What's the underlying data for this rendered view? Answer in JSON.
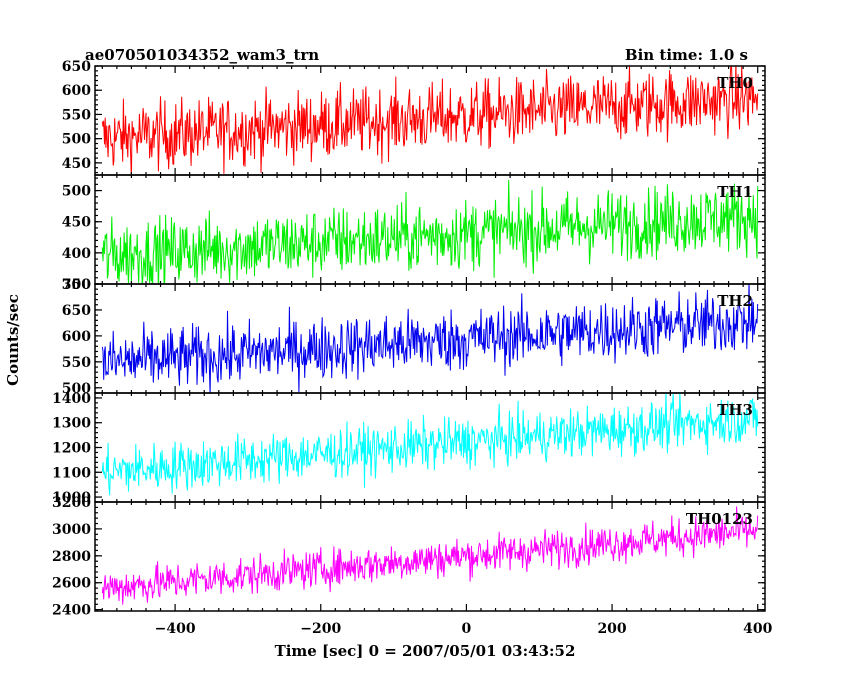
{
  "chart_data": {
    "type": "line",
    "header_left": "ae070501034352_wam3_trn",
    "header_right": "Bin time: 1.0 s",
    "xlabel": "Time [sec] 0 = 2007/05/01 03:43:52",
    "ylabel": "Counts/sec",
    "xlim": [
      -510,
      410
    ],
    "data_x_range": [
      -500,
      400
    ],
    "x_ticks": [
      -400,
      -200,
      0,
      200,
      400
    ],
    "x_tick_labels": [
      "−400",
      "−200",
      "0",
      "200",
      "400"
    ],
    "panels": [
      {
        "name": "TH0",
        "color": "#ff0000",
        "ylim": [
          425,
          650
        ],
        "y_ticks": [
          450,
          500,
          550,
          600,
          650
        ],
        "y_tick_labels": [
          "450",
          "500",
          "550",
          "600",
          "650"
        ],
        "trend_start": 500,
        "trend_end": 585,
        "noise": 35
      },
      {
        "name": "TH1",
        "color": "#00ee00",
        "ylim": [
          350,
          525
        ],
        "y_ticks": [
          350,
          400,
          450,
          500
        ],
        "y_tick_labels": [
          "350",
          "400",
          "450",
          "500"
        ],
        "trend_start": 395,
        "trend_end": 460,
        "noise": 28
      },
      {
        "name": "TH2",
        "color": "#0000ee",
        "ylim": [
          490,
          700
        ],
        "y_ticks": [
          500,
          550,
          600,
          650,
          700
        ],
        "y_tick_labels": [
          "500",
          "550",
          "600",
          "650",
          "700"
        ],
        "trend_start": 548,
        "trend_end": 630,
        "noise": 30
      },
      {
        "name": "TH3",
        "color": "#00ffff",
        "ylim": [
          980,
          1420
        ],
        "y_ticks": [
          1000,
          1100,
          1200,
          1300,
          1400
        ],
        "y_tick_labels": [
          "1000",
          "1100",
          "1200",
          "1300",
          "1400"
        ],
        "trend_start": 1100,
        "trend_end": 1320,
        "noise": 50
      },
      {
        "name": "TH0123",
        "color": "#ff00ff",
        "ylim": [
          2390,
          3200
        ],
        "y_ticks": [
          2400,
          2600,
          2800,
          3000,
          3200
        ],
        "y_tick_labels": [
          "2400",
          "2600",
          "2800",
          "3000",
          "3200"
        ],
        "trend_start": 2560,
        "trend_end": 2990,
        "noise": 70
      }
    ]
  }
}
